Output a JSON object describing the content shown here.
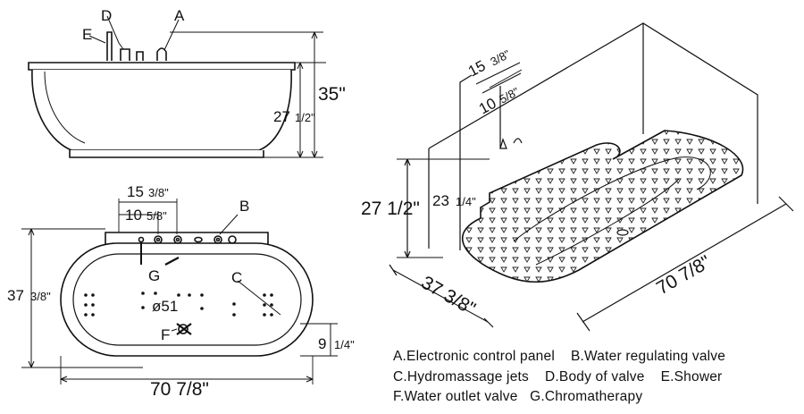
{
  "side_view": {
    "callouts": {
      "D": "D",
      "A": "A",
      "E": "E"
    },
    "dim_total_height": "35\"",
    "dim_body_height": {
      "whole": "27",
      "frac": "1/2\""
    }
  },
  "top_view": {
    "dim_a": {
      "whole": "15",
      "frac": "3/8\""
    },
    "dim_b": {
      "whole": "10",
      "frac": "5/8\""
    },
    "callout_B": "B",
    "callout_C": "C",
    "callout_G": "G",
    "callout_F": "F",
    "drain_label": "ø51",
    "dim_width": {
      "whole": "37",
      "frac": "3/8\""
    },
    "dim_length": "70 7/8\"",
    "dim_depth": {
      "whole": "9",
      "frac": "1/4\""
    }
  },
  "iso_view": {
    "dim_a": {
      "whole": "15",
      "frac": "3/8\""
    },
    "dim_b": {
      "whole": "10",
      "frac": "5/8\""
    },
    "dim_height": "27 1/2\"",
    "dim_inner": {
      "whole": "23",
      "frac": "1/4\""
    },
    "dim_width": "37 3/8\"",
    "dim_length": "70 7/8\""
  },
  "legend": {
    "row1": [
      "A.Electronic control panel",
      "B.Water regulating valve"
    ],
    "row2": [
      "C.Hydromassage jets",
      "D.Body of valve",
      "E.Shower"
    ],
    "row3": [
      "F.Water outlet valve",
      "G.Chromatherapy"
    ]
  }
}
